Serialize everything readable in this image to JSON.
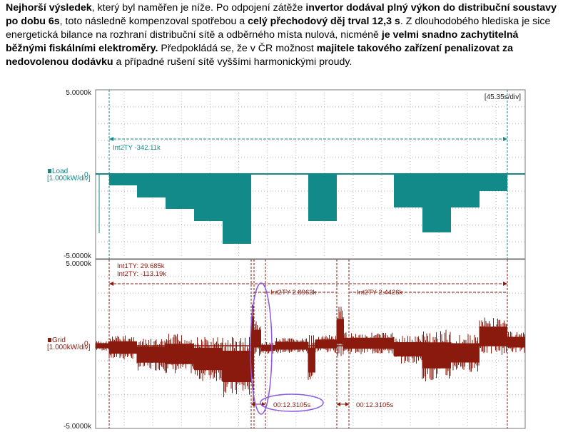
{
  "paragraph": {
    "s1_b": "Nejhorší výsledek",
    "s1": ", který byl naměřen je níže. Po odpojení zátěže ",
    "s2_b": "invertor dodával plný výkon do distribuční soustavy po dobu 6s",
    "s2": ", toto následně kompenzoval spotřebou a ",
    "s3_b": "celý přechodový děj trval 12,3 s",
    "s3": ". Z dlouhodobého hlediska je sice energetická bilance na rozhraní distribuční sítě a odběrného místa nulová, nicméně ",
    "s4_b": "je velmi snadno zachytitelná běžnými fiskálními elektroměry.",
    "s4": " Předpokládá se, že v ČR možnost ",
    "s5_b": "majitele takového zařízení penalizovat za nedovolenou dodávku",
    "s5": " a případné rušení sítě vyššími harmonickými proudy."
  },
  "figure": {
    "time_scale": "[45.35s/div]",
    "load_panel": {
      "ymax": "5.0000k",
      "ymin": "-5.0000k",
      "zero_label": "0",
      "channel": "Load",
      "scale": "[1.000kW/div]",
      "color": "#138a8a",
      "annotation": "Int2TY -342.11k"
    },
    "grid_panel": {
      "ymax": "5.0000k",
      "ymin": "-5.0000k",
      "zero_label": "0",
      "channel": "Grid",
      "scale": "[1.000kW/div]",
      "color": "#8b1a0e",
      "annotation_1": "Int1TY: 29.685k",
      "annotation_2": "Int2TY: -113.19k",
      "annotation_3": "Int2TY 2.8963k",
      "annotation_4": "Int2TY 2.4426k",
      "time_1": "00:12.3105s",
      "time_2": "00:12.3105s"
    },
    "highlight_color": "#8a5ae0"
  }
}
